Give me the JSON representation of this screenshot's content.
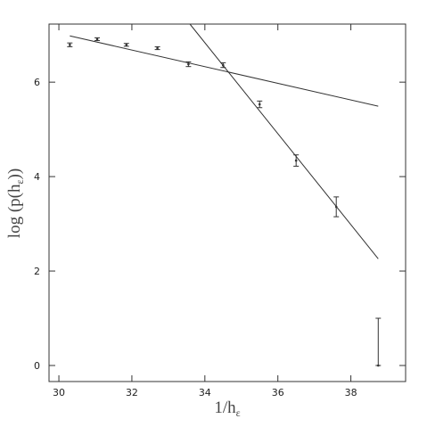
{
  "chart_data": {
    "type": "scatter",
    "xlabel": [
      "1/h",
      "ε"
    ],
    "ylabel": [
      "log (p(h",
      "ε",
      "))"
    ],
    "xlim": [
      29.73,
      39.5
    ],
    "ylim": [
      -0.34,
      7.23
    ],
    "xticks": [
      30,
      32,
      34,
      36,
      38
    ],
    "yticks": [
      0,
      2,
      4,
      6
    ],
    "color": "#333333",
    "points": {
      "x": [
        30.3,
        31.05,
        31.85,
        32.7,
        33.55,
        34.5,
        35.5,
        36.5,
        37.6,
        38.75
      ],
      "values": [
        6.79,
        6.91,
        6.79,
        6.72,
        6.38,
        6.36,
        5.53,
        4.34,
        3.36,
        0
      ],
      "err_minus": [
        0.04,
        0.03,
        0.03,
        0.03,
        0.05,
        0.05,
        0.07,
        0.12,
        0.21,
        0
      ],
      "err_plus": [
        0.04,
        0.03,
        0.03,
        0.03,
        0.05,
        0.05,
        0.07,
        0.12,
        0.21,
        1
      ]
    },
    "fits": [
      {
        "x": [
          30.3,
          38.75
        ],
        "values": [
          6.98,
          5.49
        ]
      },
      {
        "x": [
          33.59,
          38.75
        ],
        "values": [
          7.23,
          2.26
        ]
      }
    ]
  }
}
